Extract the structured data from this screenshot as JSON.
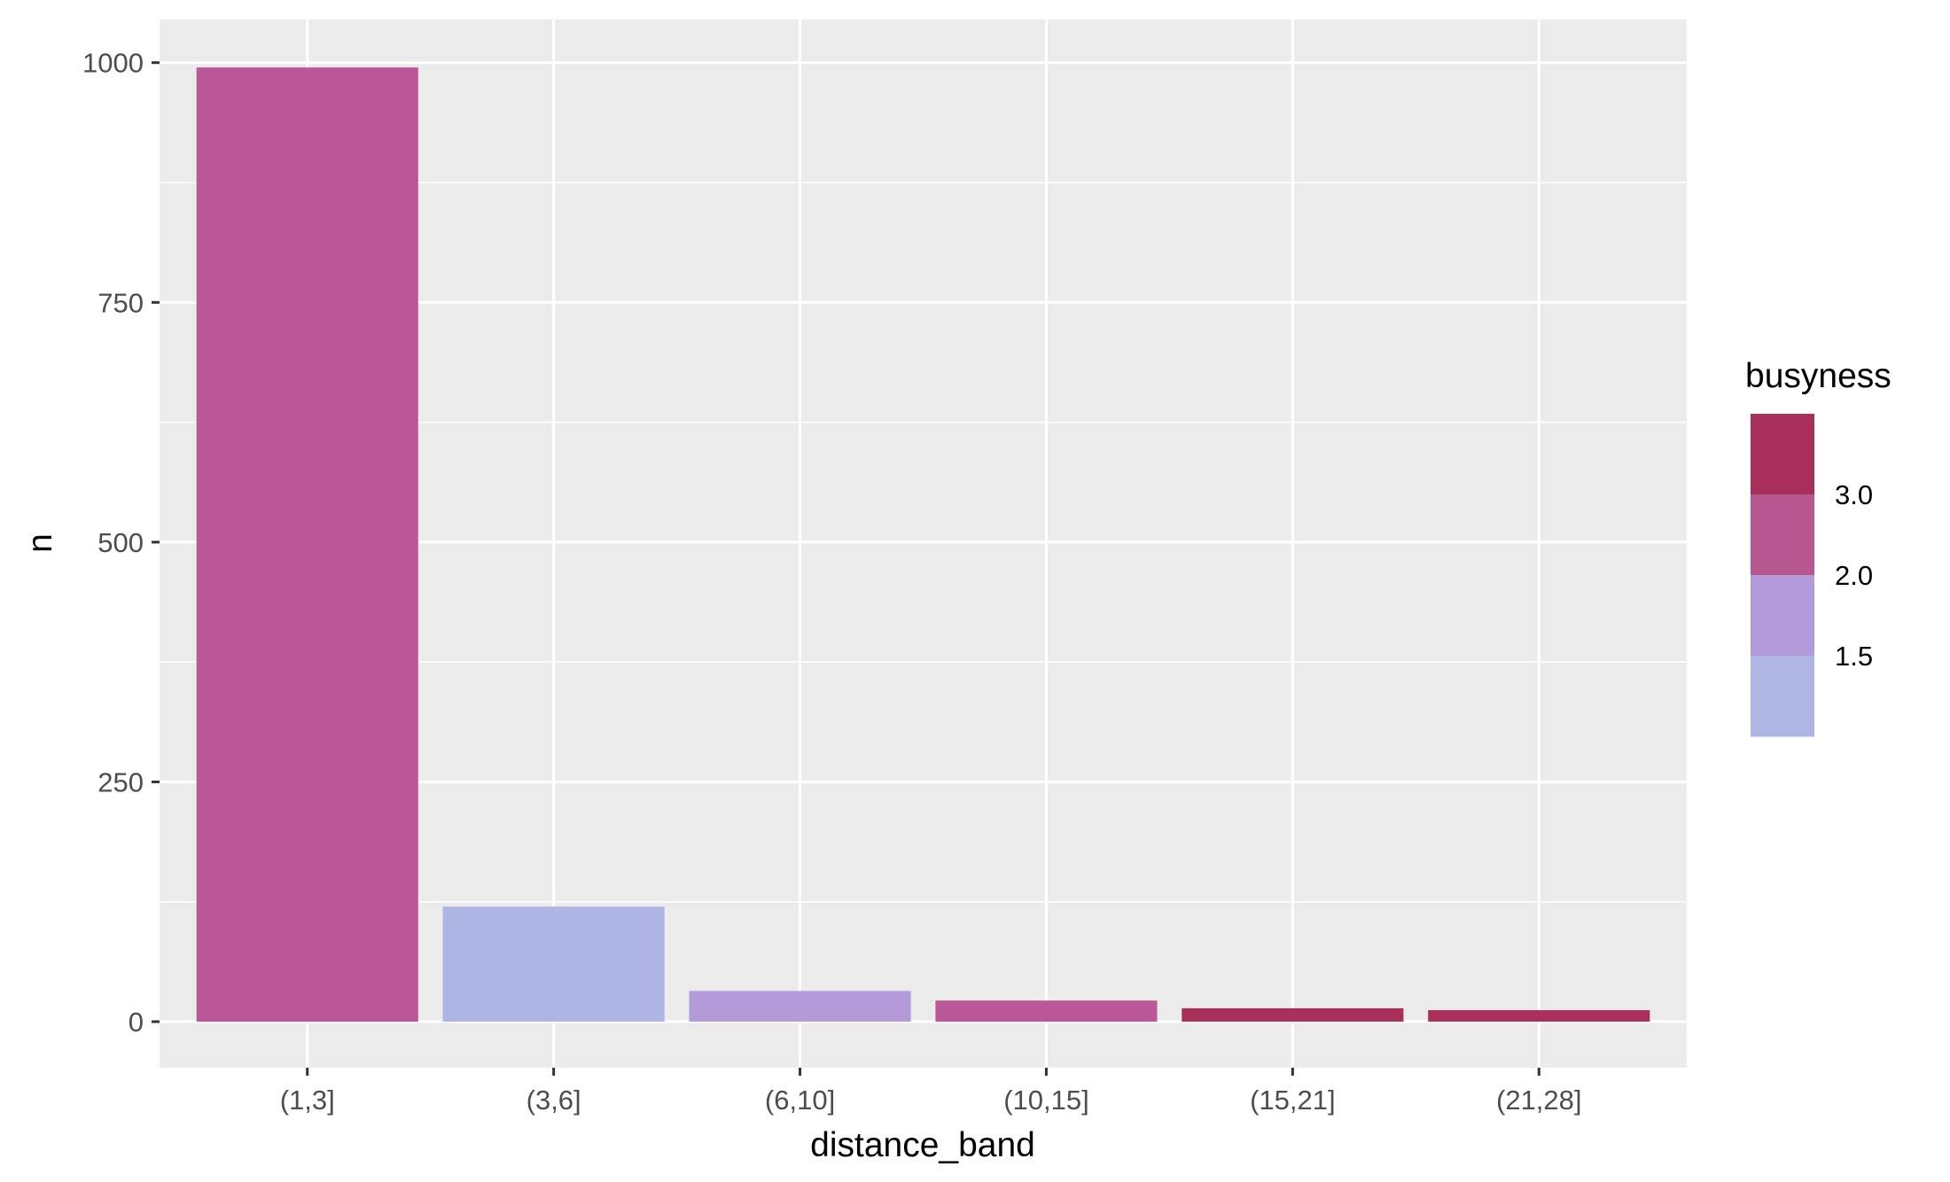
{
  "chart_data": {
    "type": "bar",
    "title": "",
    "xlabel": "distance_band",
    "ylabel": "n",
    "categories": [
      "(1,3]",
      "(3,6]",
      "(6,10]",
      "(10,15]",
      "(15,21]",
      "(21,28]"
    ],
    "values": [
      995,
      120,
      32,
      22,
      14,
      12
    ],
    "fill_values": [
      2.2,
      1.2,
      1.7,
      2.2,
      3.2,
      3.2
    ],
    "ylim": [
      -48,
      1045
    ],
    "yticks": [
      0,
      250,
      500,
      750,
      1000
    ],
    "grid": true,
    "legend": {
      "title": "busyness",
      "placement": "right",
      "breaks": [
        {
          "label": "3.0",
          "from": "#b7578f",
          "to": "#a8305a"
        },
        {
          "label": "2.0",
          "from": "#b39ad8",
          "to": "#b7578f"
        },
        {
          "label": "1.5",
          "from": "#aeb6e4",
          "to": "#b39ad8"
        }
      ],
      "bands": [
        "#a8305a",
        "#b7578f",
        "#b39ad8",
        "#aeb6e4"
      ]
    },
    "colors": {
      "panel": "#ebebeb",
      "grid": "#ffffff",
      "bar_colors": [
        "#bb5798",
        "#acb5e3",
        "#b39ad8",
        "#bb5798",
        "#a8305a",
        "#a8305a"
      ]
    }
  }
}
